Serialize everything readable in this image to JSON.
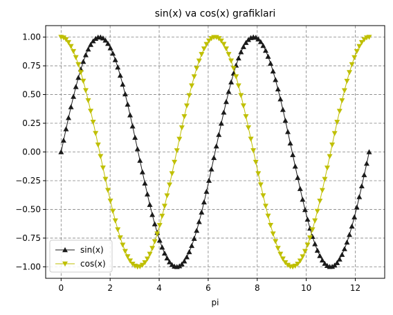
{
  "chart_data": {
    "type": "line",
    "title": "sin(x) va cos(x) grafiklari",
    "xlabel": "pi",
    "ylabel": "",
    "xlim": [
      -0.63,
      13.2
    ],
    "ylim": [
      -1.1,
      1.1
    ],
    "x_ticks": [
      0,
      2,
      4,
      6,
      8,
      10,
      12
    ],
    "x_tick_labels": [
      "0",
      "2",
      "4",
      "6",
      "8",
      "10",
      "12"
    ],
    "y_ticks": [
      -1.0,
      -0.75,
      -0.5,
      -0.25,
      0.0,
      0.25,
      0.5,
      0.75,
      1.0
    ],
    "y_tick_labels": [
      "−1.00",
      "−0.75",
      "−0.50",
      "−0.25",
      "0.00",
      "0.25",
      "0.50",
      "0.75",
      "1.00"
    ],
    "grid": true,
    "legend": "lower-left",
    "x_range": [
      0,
      12.566
    ],
    "n_points": 126,
    "series": [
      {
        "name": "sin(x)",
        "function": "sin",
        "color": "#1a1a1a",
        "marker": "triangle-up"
      },
      {
        "name": "cos(x)",
        "function": "cos",
        "color": "#bfbf00",
        "marker": "triangle-down"
      }
    ]
  }
}
